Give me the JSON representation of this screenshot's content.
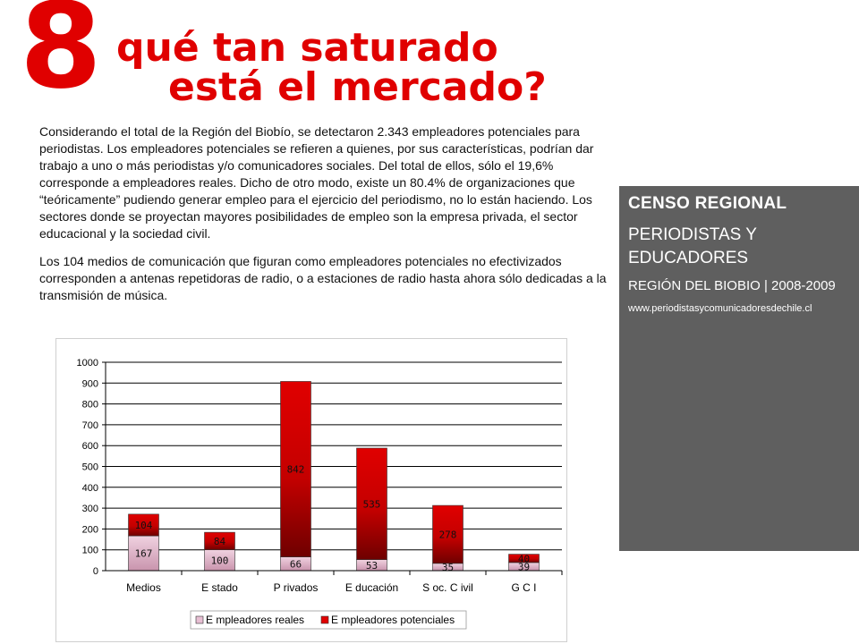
{
  "header": {
    "number": "8",
    "title_line1": "qué tan saturado",
    "title_line2": "está el mercado?"
  },
  "body": {
    "paragraph1": "Considerando el total de la Región del Biobío, se detectaron 2.343 empleadores potenciales para periodistas. Los empleadores potenciales se refieren a quienes, por sus características, podrían dar trabajo a uno o más periodistas y/o comunicadores sociales. Del total de ellos, sólo el 19,6% corresponde a empleadores reales. Dicho de otro modo, existe un 80.4% de organizaciones que “teóricamente” pudiendo generar empleo para el ejercicio del periodismo, no lo están haciendo. Los sectores donde se proyectan mayores posibilidades de empleo son la empresa privada, el sector educacional y la sociedad civil.",
    "paragraph2": "Los 104 medios de comunicación que figuran como empleadores potenciales no efectivizados corresponden a antenas repetidoras de radio, o a estaciones de radio hasta ahora sólo dedicadas a la transmisión de música."
  },
  "sidebar": {
    "heading": "CENSO REGIONAL",
    "subtitle": "PERIODISTAS Y EDUCADORES",
    "region": "REGIÓN DEL BIOBIO | 2008-2009",
    "url": "www.periodistasycomunicadoresdechile.cl",
    "background_color": "#5f5f5f"
  },
  "chart_data": {
    "type": "bar",
    "stacked": true,
    "categories": [
      "Medios",
      "E stado",
      "P rivados",
      "E ducación",
      "S oc. C ivil",
      "G C I"
    ],
    "series": [
      {
        "name": "E mpleadores  reales",
        "values": [
          167,
          100,
          66,
          53,
          35,
          39
        ],
        "color": "#e7bfd3"
      },
      {
        "name": "E mpleadores  potenciales",
        "values": [
          104,
          84,
          842,
          535,
          278,
          40
        ],
        "color": "#e00000"
      }
    ],
    "y_ticks": [
      "0",
      "100",
      "200",
      "300",
      "400",
      "500",
      "600",
      "700",
      "800",
      "900",
      "1000"
    ],
    "ylim": [
      0,
      1000
    ],
    "grid": true,
    "legend_position": "bottom",
    "accent_color": "#e00000"
  }
}
